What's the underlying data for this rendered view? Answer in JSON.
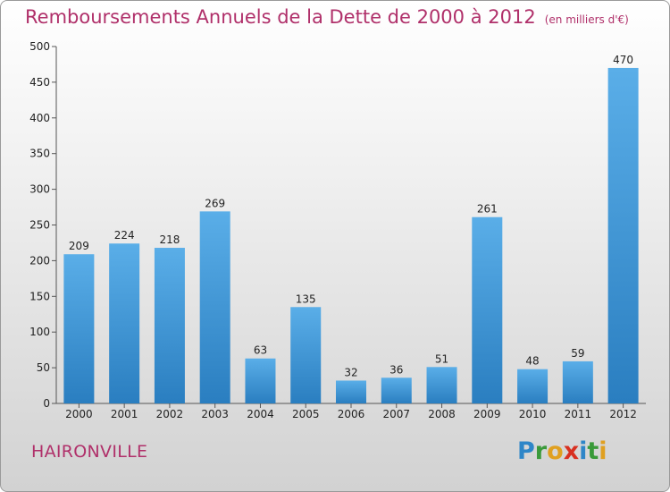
{
  "title": "Remboursements Annuels de la Dette de 2000 à 2012",
  "unit": "(en milliers d'€)",
  "commune": "HAIRONVILLE",
  "brand": {
    "letters": [
      {
        "ch": "P",
        "color": "#2e86c8"
      },
      {
        "ch": "r",
        "color": "#3a9a3a"
      },
      {
        "ch": "o",
        "color": "#e0a020"
      },
      {
        "ch": "x",
        "color": "#d83020"
      },
      {
        "ch": "i",
        "color": "#2e86c8"
      },
      {
        "ch": "t",
        "color": "#3a9a3a"
      },
      {
        "ch": "i",
        "color": "#e0a020"
      }
    ]
  },
  "colors": {
    "bar_light": "#5aaee8",
    "bar_dark": "#2a7ec0",
    "title": "#b0306a"
  },
  "chart_data": {
    "type": "bar",
    "categories": [
      "2000",
      "2001",
      "2002",
      "2003",
      "2004",
      "2005",
      "2006",
      "2007",
      "2008",
      "2009",
      "2010",
      "2011",
      "2012"
    ],
    "values": [
      209,
      224,
      218,
      269,
      63,
      135,
      32,
      36,
      51,
      261,
      48,
      59,
      470
    ],
    "ylim": [
      0,
      500
    ],
    "yticks": [
      0,
      50,
      100,
      150,
      200,
      250,
      300,
      350,
      400,
      450,
      500
    ],
    "grid": false
  }
}
